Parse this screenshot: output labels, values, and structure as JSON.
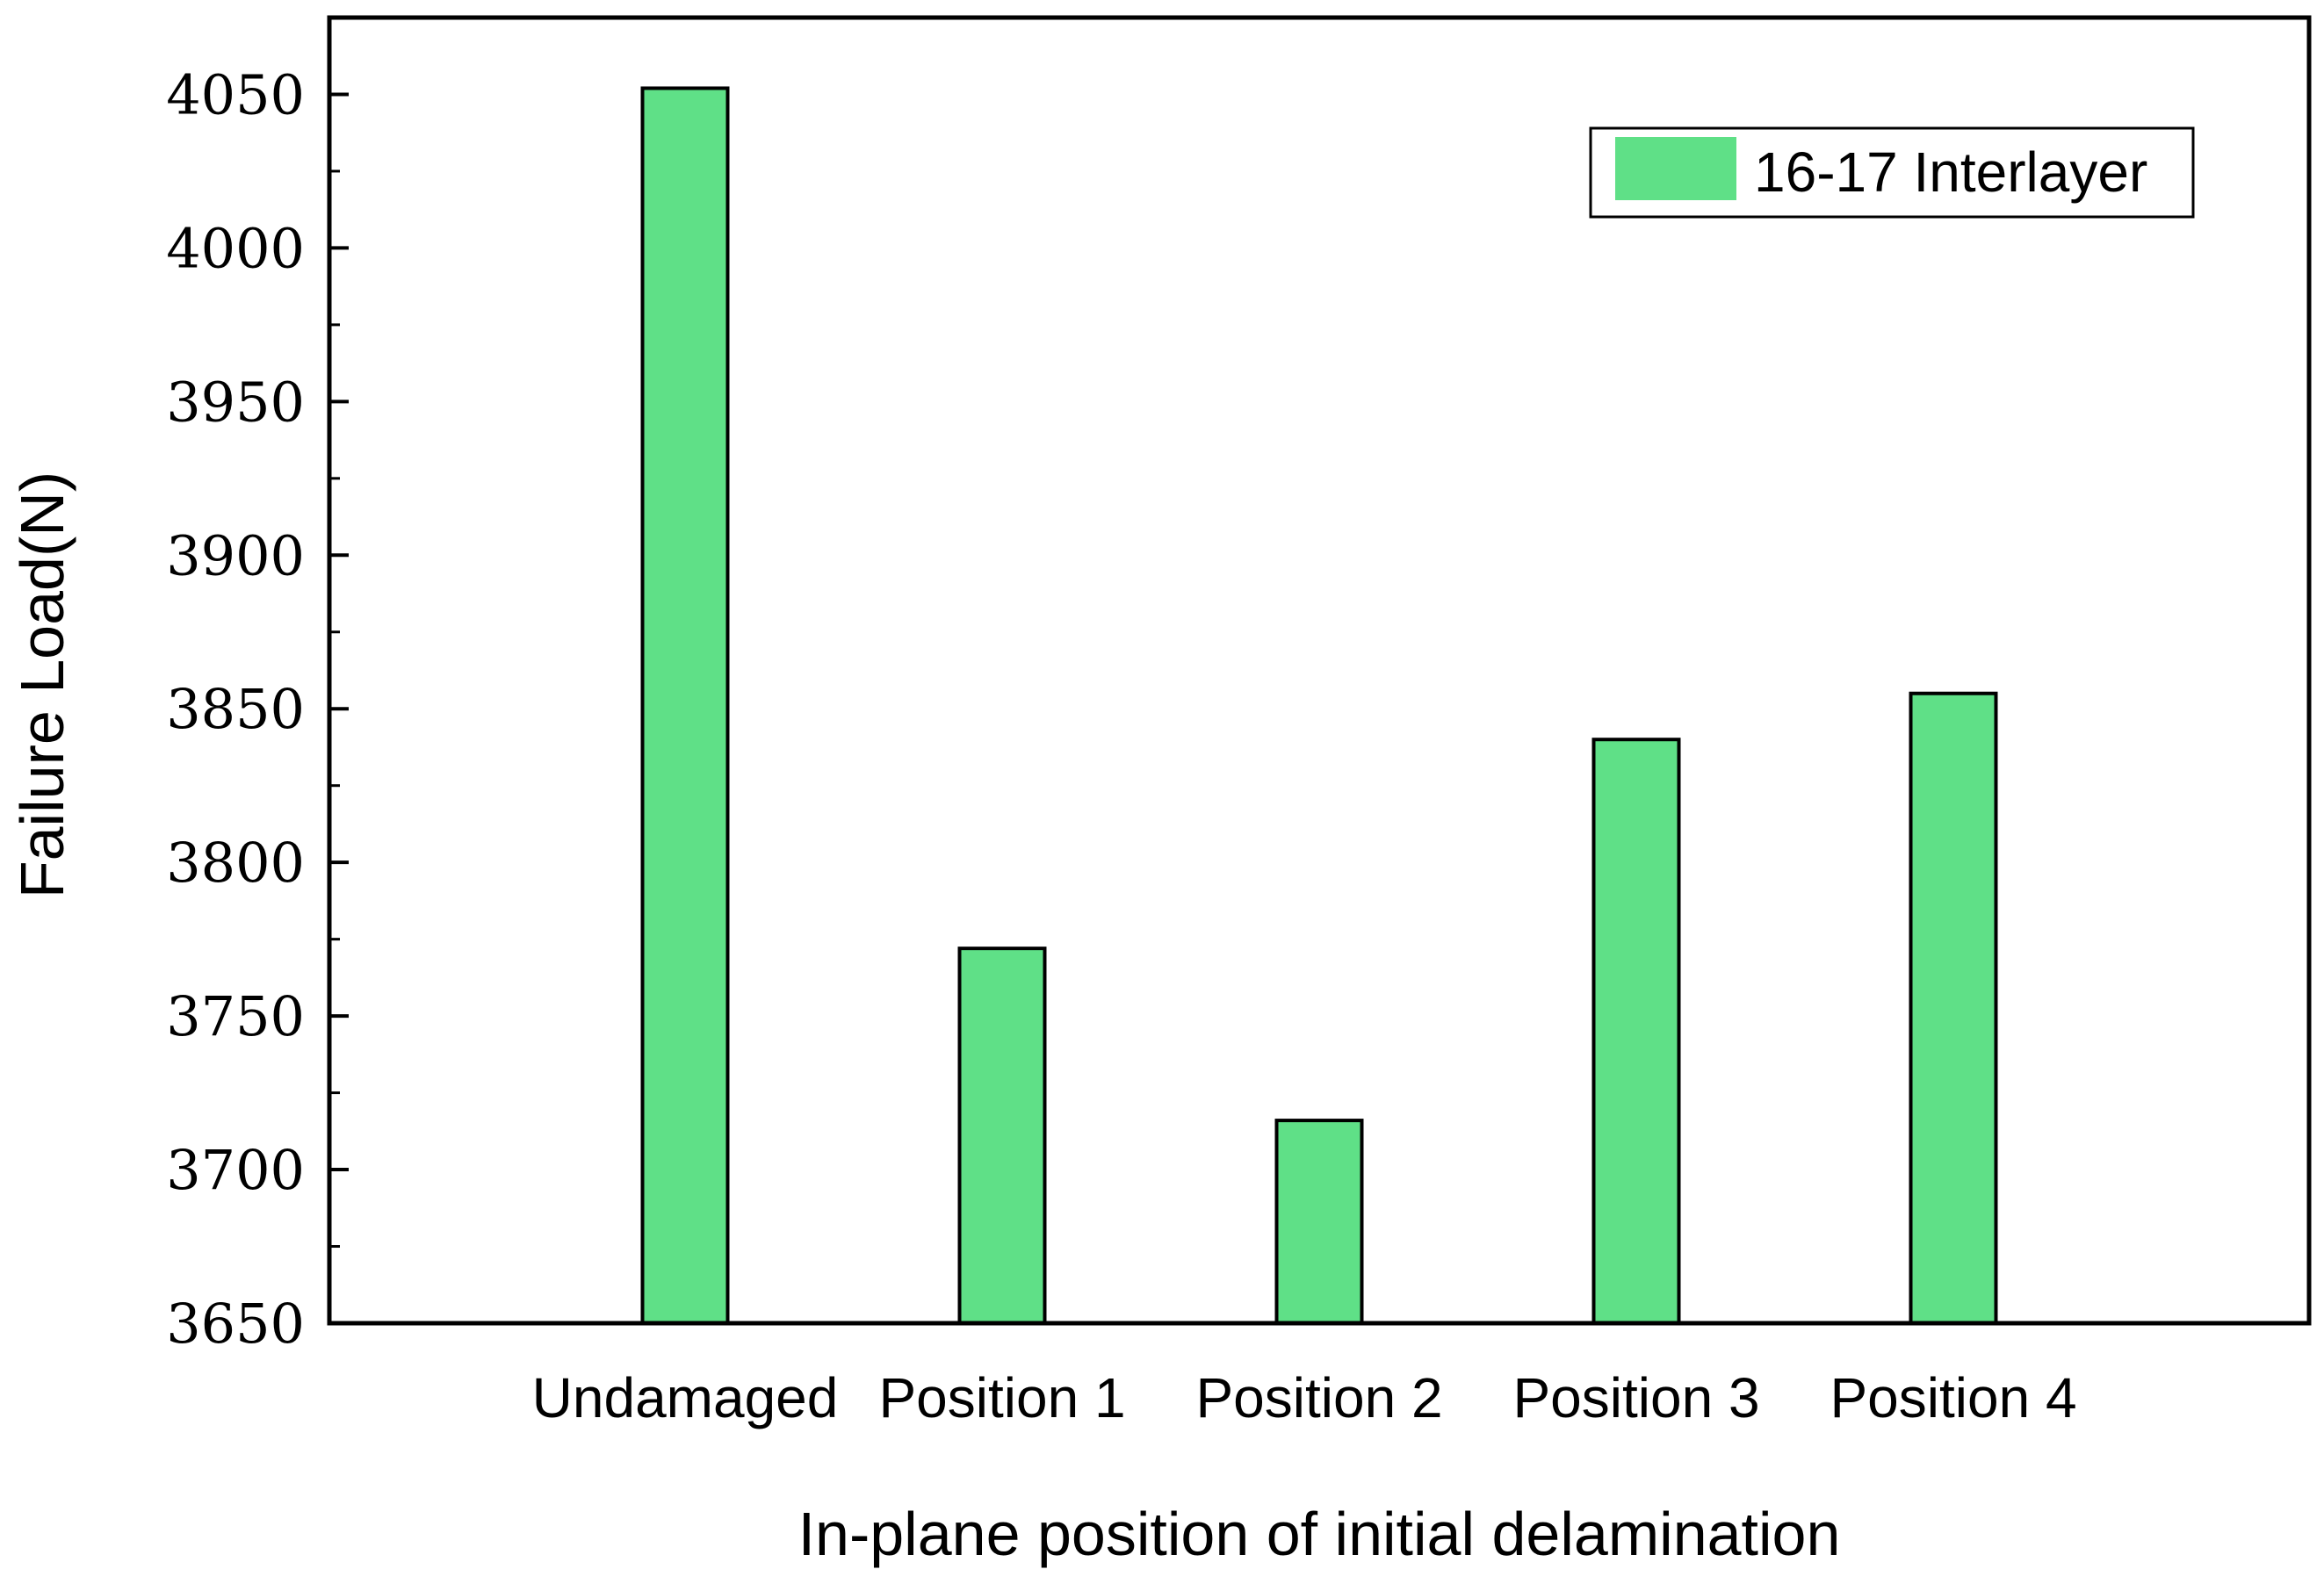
{
  "chart_data": {
    "type": "bar",
    "title": "",
    "xlabel": "In-plane position of initial delamination",
    "ylabel": "Failure Load(N)",
    "categories": [
      "Undamaged",
      "Position 1",
      "Position 2",
      "Position 3",
      "Position 4"
    ],
    "series": [
      {
        "name": "16-17 Interlayer",
        "values": [
          4052,
          3772,
          3716,
          3840,
          3855
        ]
      }
    ],
    "ylim": [
      3650,
      4075
    ],
    "yticks": [
      3650,
      3700,
      3750,
      3800,
      3850,
      3900,
      3950,
      4000,
      4050
    ],
    "ytick_labels": [
      "3650",
      "3700",
      "3750",
      "3800",
      "3850",
      "3900",
      "3950",
      "4000",
      "4050"
    ],
    "grid": false,
    "legend_position": "top-right",
    "colors": {
      "bar_fill": "#5fe087",
      "bar_stroke": "#000000",
      "axis": "#000000"
    }
  }
}
